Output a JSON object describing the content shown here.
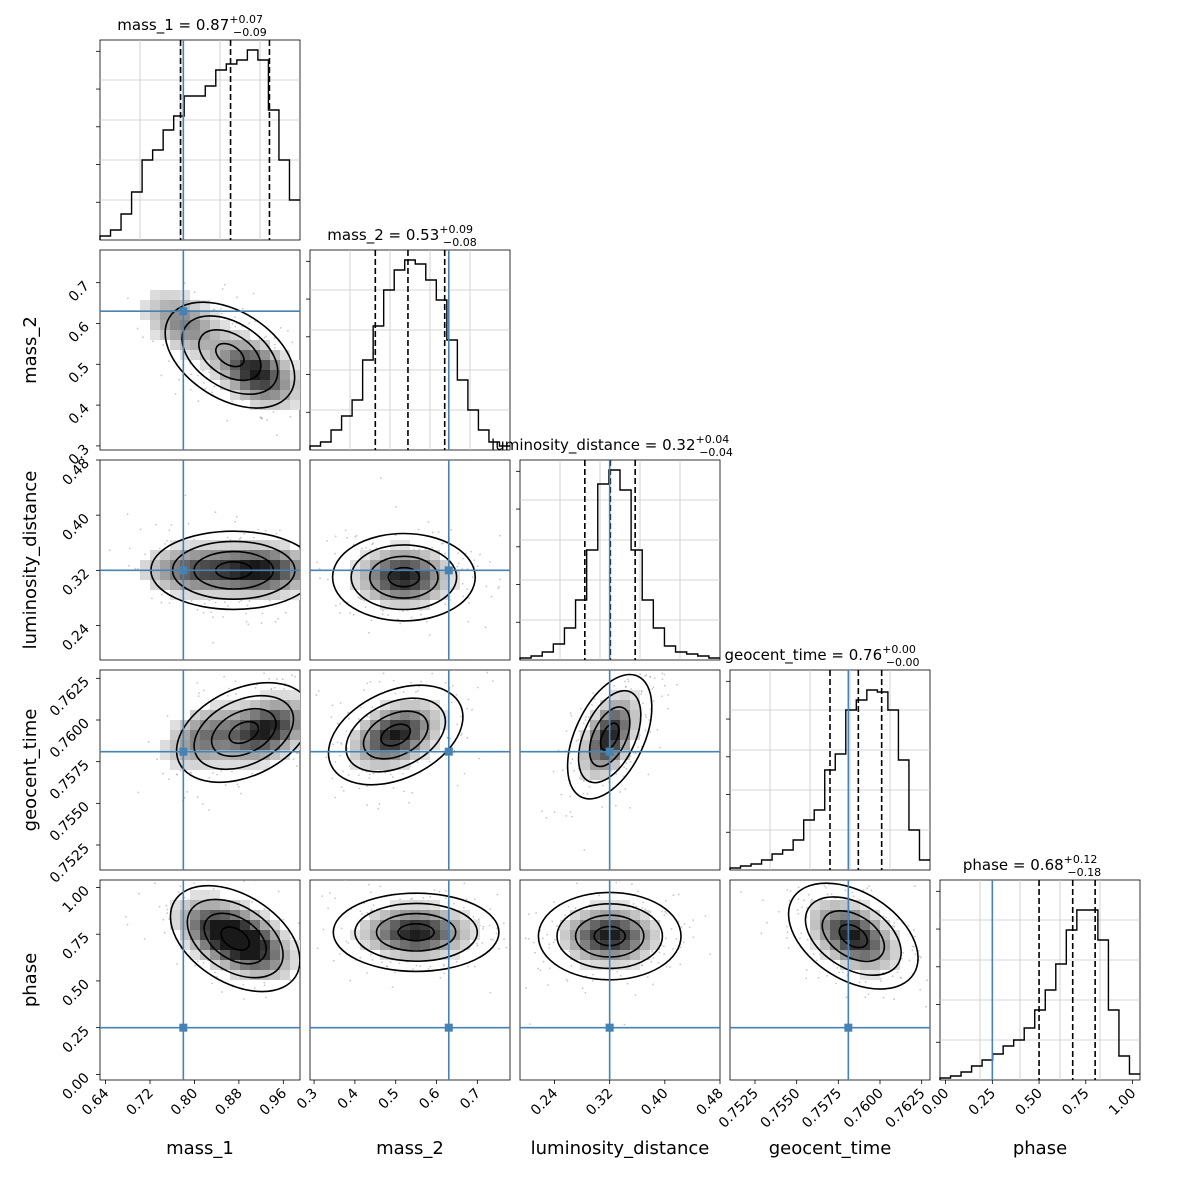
{
  "figure": {
    "title": ""
  },
  "chart_data": {
    "type": "corner",
    "grid": true,
    "colors": {
      "truth": "#4682b4",
      "hist": "#000000",
      "grid": "#c8c8c8",
      "quantile": "#000000"
    },
    "parameters": [
      {
        "name": "mass_1",
        "xlabel": "mass_1",
        "title_label": "mass_1 = 0.87",
        "median": 0.87,
        "err_plus": "+0.07",
        "err_minus": "−0.09",
        "range": [
          0.63,
          0.99
        ],
        "ticks": [
          0.64,
          0.72,
          0.8,
          0.88,
          0.96
        ],
        "tick_labels": [
          "0.64",
          "0.72",
          "0.80",
          "0.88",
          "0.96"
        ],
        "truth": 0.78,
        "quantiles": [
          0.775,
          0.865,
          0.935
        ],
        "hist": [
          0.02,
          0.05,
          0.13,
          0.24,
          0.4,
          0.45,
          0.55,
          0.62,
          0.72,
          0.72,
          0.77,
          0.85,
          0.88,
          0.9,
          0.95,
          0.9,
          0.65,
          0.4,
          0.2
        ]
      },
      {
        "name": "mass_2",
        "xlabel": "mass_2",
        "ylabel": "mass_2",
        "title_label": "mass_2 = 0.53",
        "median": 0.53,
        "err_plus": "+0.09",
        "err_minus": "−0.08",
        "range": [
          0.29,
          0.78
        ],
        "ticks": [
          0.3,
          0.4,
          0.5,
          0.6,
          0.7
        ],
        "tick_labels": [
          "0.3",
          "0.4",
          "0.5",
          "0.6",
          "0.7"
        ],
        "truth": 0.63,
        "quantiles": [
          0.45,
          0.53,
          0.62
        ],
        "hist": [
          0.02,
          0.04,
          0.1,
          0.17,
          0.25,
          0.45,
          0.62,
          0.8,
          0.9,
          0.95,
          0.93,
          0.85,
          0.75,
          0.55,
          0.35,
          0.2,
          0.1,
          0.04,
          0.02
        ]
      },
      {
        "name": "luminosity_distance",
        "xlabel": "luminosity_distance",
        "ylabel": "luminosity_distance",
        "title_label": "luminosity_distance = 0.32",
        "median": 0.32,
        "err_plus": "+0.04",
        "err_minus": "−0.04",
        "range": [
          0.19,
          0.48
        ],
        "ticks": [
          0.24,
          0.32,
          0.4,
          0.48
        ],
        "tick_labels": [
          "0.24",
          "0.32",
          "0.40",
          "0.48"
        ],
        "truth": 0.32,
        "quantiles": [
          0.284,
          0.321,
          0.357
        ],
        "hist": [
          0.01,
          0.02,
          0.04,
          0.08,
          0.16,
          0.3,
          0.55,
          0.88,
          0.95,
          0.85,
          0.55,
          0.3,
          0.16,
          0.07,
          0.04,
          0.03,
          0.02,
          0.01
        ]
      },
      {
        "name": "geocent_time",
        "xlabel": "geocent_time",
        "ylabel": "geocent_time",
        "title_label": "geocent_time = 0.76",
        "median": 0.76,
        "err_plus": "+0.00",
        "err_minus": "−0.00",
        "range": [
          0.751,
          0.763
        ],
        "ticks": [
          0.7525,
          0.755,
          0.7575,
          0.76,
          0.7625
        ],
        "tick_labels": [
          "0.7525",
          "0.7550",
          "0.7575",
          "0.7600",
          "0.7625"
        ],
        "truth": 0.7581,
        "quantiles": [
          0.757,
          0.7587,
          0.7601
        ],
        "hist": [
          0.01,
          0.02,
          0.03,
          0.05,
          0.08,
          0.1,
          0.15,
          0.25,
          0.3,
          0.5,
          0.58,
          0.8,
          0.85,
          0.9,
          0.89,
          0.8,
          0.55,
          0.2,
          0.05
        ]
      },
      {
        "name": "phase",
        "xlabel": "phase",
        "ylabel": "phase",
        "title_label": "phase = 0.68",
        "median": 0.68,
        "err_plus": "+0.12",
        "err_minus": "−0.18",
        "range": [
          -0.03,
          1.04
        ],
        "ticks": [
          0.0,
          0.25,
          0.5,
          0.75,
          1.0
        ],
        "tick_labels": [
          "0.00",
          "0.25",
          "0.50",
          "0.75",
          "1.00"
        ],
        "truth": 0.25,
        "quantiles": [
          0.5,
          0.68,
          0.8
        ],
        "hist": [
          0.01,
          0.02,
          0.04,
          0.07,
          0.1,
          0.13,
          0.17,
          0.2,
          0.26,
          0.35,
          0.45,
          0.58,
          0.75,
          0.85,
          0.85,
          0.7,
          0.35,
          0.12,
          0.03
        ]
      }
    ],
    "pairs": [
      {
        "x": 0,
        "y": 1,
        "peaks": [
          {
            "x": 0.78,
            "y": 0.6,
            "w": 0.55
          },
          {
            "x": 0.91,
            "y": 0.48,
            "w": 1.0
          }
        ],
        "shape": "blob-neg"
      },
      {
        "x": 0,
        "y": 2,
        "peaks": [
          {
            "x": 0.8,
            "y": 0.32,
            "w": 0.7
          },
          {
            "x": 0.92,
            "y": 0.32,
            "w": 1.0
          }
        ],
        "shape": "blob-wide"
      },
      {
        "x": 1,
        "y": 2,
        "peaks": [
          {
            "x": 0.52,
            "y": 0.31,
            "w": 1.0
          }
        ],
        "shape": "blob"
      },
      {
        "x": 0,
        "y": 3,
        "peaks": [
          {
            "x": 0.93,
            "y": 0.7594,
            "w": 1.0
          },
          {
            "x": 0.82,
            "y": 0.759,
            "w": 0.6
          }
        ],
        "shape": "blob-pos"
      },
      {
        "x": 1,
        "y": 3,
        "peaks": [
          {
            "x": 0.5,
            "y": 0.7591,
            "w": 1.0
          }
        ],
        "shape": "blob-pos"
      },
      {
        "x": 2,
        "y": 3,
        "peaks": [
          {
            "x": 0.32,
            "y": 0.759,
            "w": 1.0
          }
        ],
        "shape": "blob-steep"
      },
      {
        "x": 0,
        "y": 4,
        "peaks": [
          {
            "x": 0.84,
            "y": 0.76,
            "w": 0.8
          },
          {
            "x": 0.9,
            "y": 0.7,
            "w": 1.0
          }
        ],
        "shape": "blob-neg"
      },
      {
        "x": 1,
        "y": 4,
        "peaks": [
          {
            "x": 0.55,
            "y": 0.76,
            "w": 1.0
          }
        ],
        "shape": "blob-wide"
      },
      {
        "x": 2,
        "y": 4,
        "peaks": [
          {
            "x": 0.32,
            "y": 0.74,
            "w": 1.0
          }
        ],
        "shape": "blob"
      },
      {
        "x": 3,
        "y": 4,
        "peaks": [
          {
            "x": 0.7584,
            "y": 0.74,
            "w": 1.0
          }
        ],
        "shape": "blob-neg"
      }
    ]
  }
}
